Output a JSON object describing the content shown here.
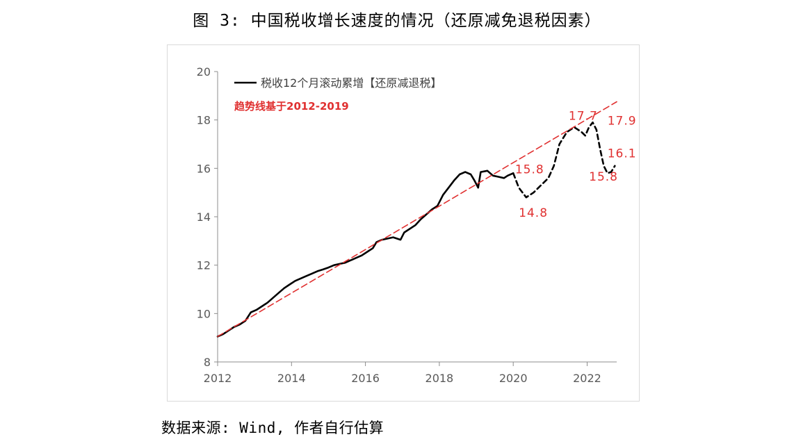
{
  "figure": {
    "title": "图 3: 中国税收增长速度的情况（还原减免退税因素）",
    "source": "数据来源: Wind, 作者自行估算"
  },
  "chart_data": {
    "type": "line",
    "title": "图 3: 中国税收增长速度的情况（还原减免退税因素）",
    "xlabel": "",
    "ylabel": "",
    "xlim": [
      2012,
      2022.8
    ],
    "ylim": [
      8,
      20
    ],
    "xticks": [
      2012,
      2014,
      2016,
      2018,
      2020,
      2022
    ],
    "yticks": [
      8,
      10,
      12,
      14,
      16,
      18,
      20
    ],
    "grid": false,
    "legend_position": "top-left",
    "series": [
      {
        "name": "税收12个月滚动累增【还原减退税】",
        "color": "#000000",
        "style": "solid",
        "points": [
          [
            2012.0,
            9.05
          ],
          [
            2012.15,
            9.15
          ],
          [
            2012.3,
            9.3
          ],
          [
            2012.45,
            9.45
          ],
          [
            2012.6,
            9.55
          ],
          [
            2012.75,
            9.7
          ],
          [
            2012.9,
            10.05
          ],
          [
            2013.05,
            10.15
          ],
          [
            2013.2,
            10.3
          ],
          [
            2013.35,
            10.45
          ],
          [
            2013.5,
            10.65
          ],
          [
            2013.65,
            10.85
          ],
          [
            2013.8,
            11.05
          ],
          [
            2013.95,
            11.2
          ],
          [
            2014.1,
            11.35
          ],
          [
            2014.25,
            11.45
          ],
          [
            2014.4,
            11.55
          ],
          [
            2014.55,
            11.65
          ],
          [
            2014.7,
            11.75
          ],
          [
            2014.85,
            11.82
          ],
          [
            2015.0,
            11.9
          ],
          [
            2015.15,
            12.0
          ],
          [
            2015.3,
            12.05
          ],
          [
            2015.45,
            12.1
          ],
          [
            2015.6,
            12.2
          ],
          [
            2015.75,
            12.3
          ],
          [
            2015.9,
            12.4
          ],
          [
            2016.05,
            12.55
          ],
          [
            2016.2,
            12.7
          ],
          [
            2016.3,
            12.95
          ],
          [
            2016.45,
            13.05
          ],
          [
            2016.6,
            13.1
          ],
          [
            2016.75,
            13.15
          ],
          [
            2016.85,
            13.1
          ],
          [
            2016.95,
            13.05
          ],
          [
            2017.05,
            13.35
          ],
          [
            2017.2,
            13.5
          ],
          [
            2017.35,
            13.65
          ],
          [
            2017.5,
            13.9
          ],
          [
            2017.65,
            14.1
          ],
          [
            2017.8,
            14.3
          ],
          [
            2017.95,
            14.45
          ],
          [
            2018.1,
            14.9
          ],
          [
            2018.25,
            15.2
          ],
          [
            2018.4,
            15.5
          ],
          [
            2018.55,
            15.75
          ],
          [
            2018.7,
            15.85
          ],
          [
            2018.85,
            15.75
          ],
          [
            2018.95,
            15.5
          ],
          [
            2019.05,
            15.2
          ],
          [
            2019.12,
            15.85
          ],
          [
            2019.3,
            15.9
          ],
          [
            2019.45,
            15.7
          ],
          [
            2019.6,
            15.65
          ],
          [
            2019.75,
            15.6
          ],
          [
            2019.85,
            15.7
          ],
          [
            2020.0,
            15.8
          ]
        ]
      },
      {
        "name": "",
        "color": "#000000",
        "style": "dashed",
        "points": [
          [
            2020.0,
            15.8
          ],
          [
            2020.15,
            15.2
          ],
          [
            2020.35,
            14.8
          ],
          [
            2020.55,
            15.0
          ],
          [
            2020.75,
            15.3
          ],
          [
            2020.95,
            15.6
          ],
          [
            2021.1,
            16.1
          ],
          [
            2021.25,
            17.0
          ],
          [
            2021.45,
            17.5
          ],
          [
            2021.65,
            17.7
          ],
          [
            2021.85,
            17.5
          ],
          [
            2021.95,
            17.35
          ],
          [
            2022.05,
            17.7
          ],
          [
            2022.15,
            17.9
          ],
          [
            2022.25,
            17.6
          ],
          [
            2022.35,
            16.8
          ],
          [
            2022.45,
            16.1
          ],
          [
            2022.55,
            15.8
          ],
          [
            2022.65,
            15.85
          ],
          [
            2022.75,
            16.1
          ]
        ]
      },
      {
        "name": "趋势线基于2012-2019",
        "color": "#e03030",
        "style": "dashed",
        "points": [
          [
            2012.0,
            9.05
          ],
          [
            2022.8,
            18.75
          ]
        ]
      }
    ],
    "annotations": [
      {
        "text": "17.7",
        "x": 2021.5,
        "y": 18.0
      },
      {
        "text": "17.9",
        "x": 2022.55,
        "y": 17.8
      },
      {
        "text": "16.1",
        "x": 2022.55,
        "y": 16.45
      },
      {
        "text": "15.8",
        "x": 2020.05,
        "y": 15.8
      },
      {
        "text": "15.8",
        "x": 2022.05,
        "y": 15.5
      },
      {
        "text": "14.8",
        "x": 2020.15,
        "y": 14.0
      }
    ]
  },
  "colors": {
    "trend": "#e03030",
    "series": "#000000",
    "axis": "#8c8c8c",
    "frame": "#d9d9d9"
  }
}
